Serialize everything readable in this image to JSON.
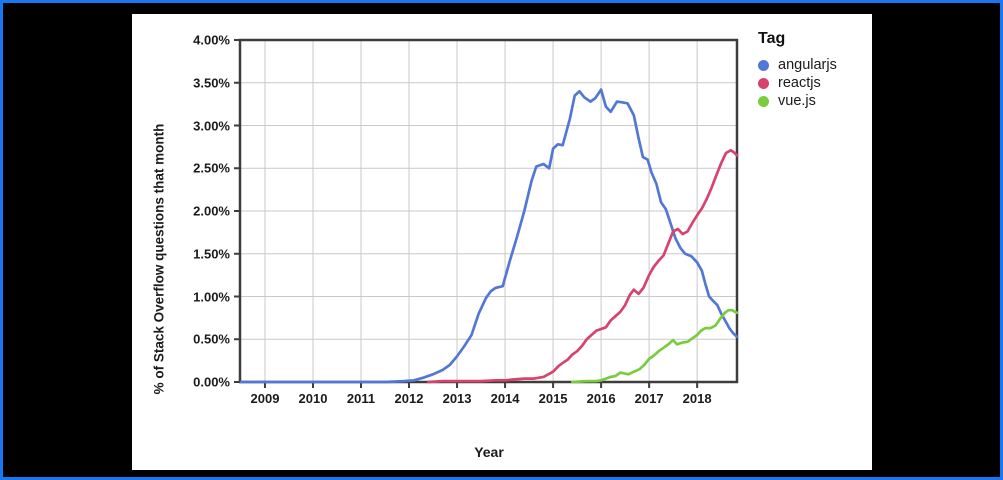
{
  "page": {
    "background": "#000000",
    "frame_color": "#1877f2",
    "card_color": "#ffffff"
  },
  "chart_data": {
    "type": "line",
    "title": "",
    "xlabel": "Year",
    "ylabel": "% of Stack Overflow questions that month",
    "x_range": [
      2008.48,
      2018.83
    ],
    "y_range": [
      0,
      4
    ],
    "x_ticks": [
      2009,
      2010,
      2011,
      2012,
      2013,
      2014,
      2015,
      2016,
      2017,
      2018
    ],
    "y_tick_values": [
      4,
      3.5,
      3,
      2.5,
      2,
      1.5,
      1,
      0.5,
      0
    ],
    "y_tick_labels": [
      "4.00%",
      "3.50%",
      "3.00%",
      "2.50%",
      "2.00%",
      "1.50%",
      "1.00%",
      "0.50%",
      "0.00%"
    ],
    "grid": true,
    "legend": {
      "title": "Tag",
      "position": "right"
    },
    "series": [
      {
        "name": "angularjs",
        "color": "#5377d6",
        "points": [
          [
            2008.5,
            0.0
          ],
          [
            2009.0,
            0.0
          ],
          [
            2009.5,
            0.0
          ],
          [
            2010.0,
            0.0
          ],
          [
            2010.5,
            0.0
          ],
          [
            2011.0,
            0.0
          ],
          [
            2011.5,
            0.0
          ],
          [
            2011.9,
            0.01
          ],
          [
            2012.1,
            0.02
          ],
          [
            2012.3,
            0.05
          ],
          [
            2012.5,
            0.09
          ],
          [
            2012.7,
            0.14
          ],
          [
            2012.85,
            0.2
          ],
          [
            2013.0,
            0.3
          ],
          [
            2013.15,
            0.42
          ],
          [
            2013.3,
            0.55
          ],
          [
            2013.45,
            0.8
          ],
          [
            2013.6,
            0.98
          ],
          [
            2013.7,
            1.06
          ],
          [
            2013.8,
            1.1
          ],
          [
            2013.95,
            1.12
          ],
          [
            2014.1,
            1.42
          ],
          [
            2014.25,
            1.7
          ],
          [
            2014.4,
            2.0
          ],
          [
            2014.55,
            2.35
          ],
          [
            2014.65,
            2.52
          ],
          [
            2014.8,
            2.55
          ],
          [
            2014.92,
            2.5
          ],
          [
            2015.0,
            2.73
          ],
          [
            2015.1,
            2.78
          ],
          [
            2015.2,
            2.77
          ],
          [
            2015.35,
            3.08
          ],
          [
            2015.45,
            3.35
          ],
          [
            2015.55,
            3.4
          ],
          [
            2015.65,
            3.33
          ],
          [
            2015.78,
            3.28
          ],
          [
            2015.88,
            3.32
          ],
          [
            2016.0,
            3.42
          ],
          [
            2016.1,
            3.22
          ],
          [
            2016.2,
            3.16
          ],
          [
            2016.33,
            3.28
          ],
          [
            2016.45,
            3.27
          ],
          [
            2016.55,
            3.26
          ],
          [
            2016.68,
            3.12
          ],
          [
            2016.78,
            2.85
          ],
          [
            2016.87,
            2.63
          ],
          [
            2016.97,
            2.6
          ],
          [
            2017.05,
            2.45
          ],
          [
            2017.15,
            2.32
          ],
          [
            2017.25,
            2.1
          ],
          [
            2017.35,
            2.02
          ],
          [
            2017.45,
            1.85
          ],
          [
            2017.55,
            1.68
          ],
          [
            2017.65,
            1.57
          ],
          [
            2017.75,
            1.5
          ],
          [
            2017.88,
            1.47
          ],
          [
            2018.0,
            1.4
          ],
          [
            2018.1,
            1.3
          ],
          [
            2018.17,
            1.15
          ],
          [
            2018.25,
            1.0
          ],
          [
            2018.33,
            0.95
          ],
          [
            2018.42,
            0.9
          ],
          [
            2018.5,
            0.8
          ],
          [
            2018.6,
            0.7
          ],
          [
            2018.67,
            0.63
          ],
          [
            2018.75,
            0.57
          ],
          [
            2018.83,
            0.53
          ]
        ]
      },
      {
        "name": "reactjs",
        "color": "#d6436e",
        "points": [
          [
            2012.4,
            0.0
          ],
          [
            2012.7,
            0.01
          ],
          [
            2013.0,
            0.01
          ],
          [
            2013.5,
            0.01
          ],
          [
            2013.8,
            0.02
          ],
          [
            2014.0,
            0.02
          ],
          [
            2014.2,
            0.03
          ],
          [
            2014.4,
            0.04
          ],
          [
            2014.6,
            0.04
          ],
          [
            2014.8,
            0.06
          ],
          [
            2015.0,
            0.12
          ],
          [
            2015.12,
            0.19
          ],
          [
            2015.22,
            0.23
          ],
          [
            2015.3,
            0.26
          ],
          [
            2015.4,
            0.32
          ],
          [
            2015.5,
            0.36
          ],
          [
            2015.6,
            0.42
          ],
          [
            2015.7,
            0.5
          ],
          [
            2015.8,
            0.55
          ],
          [
            2015.9,
            0.6
          ],
          [
            2016.0,
            0.62
          ],
          [
            2016.1,
            0.64
          ],
          [
            2016.2,
            0.72
          ],
          [
            2016.3,
            0.77
          ],
          [
            2016.4,
            0.82
          ],
          [
            2016.5,
            0.9
          ],
          [
            2016.6,
            1.02
          ],
          [
            2016.68,
            1.08
          ],
          [
            2016.78,
            1.03
          ],
          [
            2016.88,
            1.1
          ],
          [
            2017.0,
            1.25
          ],
          [
            2017.1,
            1.35
          ],
          [
            2017.2,
            1.42
          ],
          [
            2017.3,
            1.48
          ],
          [
            2017.4,
            1.62
          ],
          [
            2017.5,
            1.76
          ],
          [
            2017.6,
            1.79
          ],
          [
            2017.7,
            1.73
          ],
          [
            2017.8,
            1.76
          ],
          [
            2017.9,
            1.86
          ],
          [
            2018.0,
            1.95
          ],
          [
            2018.1,
            2.03
          ],
          [
            2018.2,
            2.14
          ],
          [
            2018.3,
            2.27
          ],
          [
            2018.4,
            2.42
          ],
          [
            2018.5,
            2.56
          ],
          [
            2018.6,
            2.68
          ],
          [
            2018.7,
            2.71
          ],
          [
            2018.78,
            2.68
          ],
          [
            2018.83,
            2.65
          ]
        ]
      },
      {
        "name": "vue.js",
        "color": "#78cc3d",
        "points": [
          [
            2015.4,
            0.0
          ],
          [
            2015.7,
            0.01
          ],
          [
            2015.9,
            0.01
          ],
          [
            2016.0,
            0.02
          ],
          [
            2016.1,
            0.04
          ],
          [
            2016.2,
            0.06
          ],
          [
            2016.3,
            0.07
          ],
          [
            2016.4,
            0.11
          ],
          [
            2016.48,
            0.1
          ],
          [
            2016.57,
            0.09
          ],
          [
            2016.68,
            0.12
          ],
          [
            2016.8,
            0.15
          ],
          [
            2016.9,
            0.2
          ],
          [
            2017.0,
            0.27
          ],
          [
            2017.1,
            0.31
          ],
          [
            2017.2,
            0.36
          ],
          [
            2017.3,
            0.4
          ],
          [
            2017.4,
            0.44
          ],
          [
            2017.5,
            0.49
          ],
          [
            2017.58,
            0.44
          ],
          [
            2017.68,
            0.46
          ],
          [
            2017.8,
            0.47
          ],
          [
            2017.9,
            0.51
          ],
          [
            2018.0,
            0.55
          ],
          [
            2018.08,
            0.6
          ],
          [
            2018.17,
            0.63
          ],
          [
            2018.28,
            0.63
          ],
          [
            2018.38,
            0.66
          ],
          [
            2018.48,
            0.74
          ],
          [
            2018.58,
            0.81
          ],
          [
            2018.65,
            0.84
          ],
          [
            2018.73,
            0.84
          ],
          [
            2018.79,
            0.82
          ],
          [
            2018.83,
            0.81
          ]
        ]
      }
    ]
  }
}
